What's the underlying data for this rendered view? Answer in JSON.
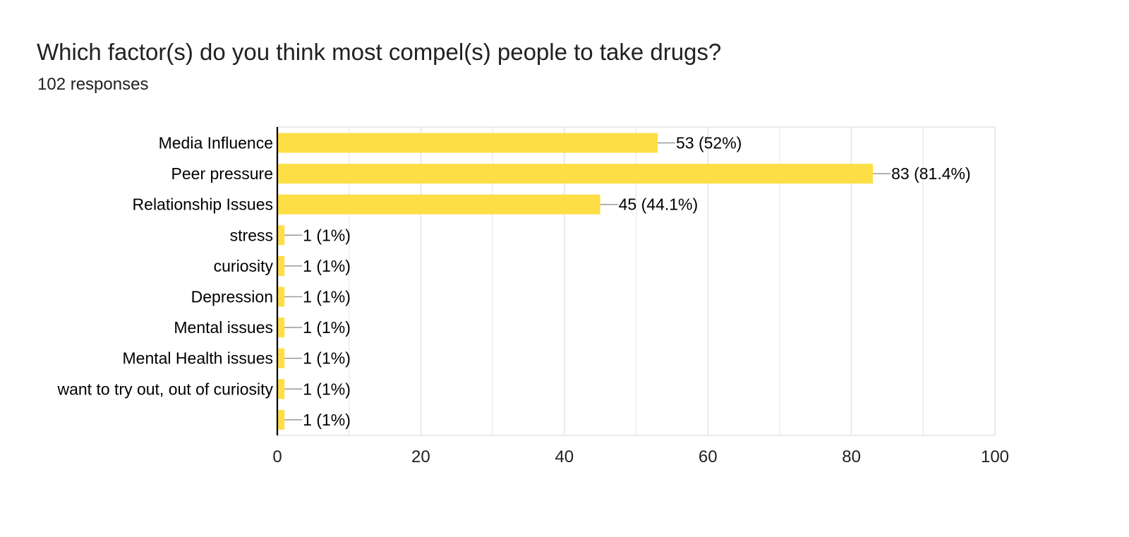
{
  "question": {
    "title": "Which factor(s) do you think most compel(s) people to take drugs?",
    "responses_label": "102 responses"
  },
  "colors": {
    "bar": "#fdde45",
    "grid": "#e8e8ee",
    "axis": "#000000",
    "leader": "#999999",
    "text": "#202124"
  },
  "chart_data": {
    "type": "bar",
    "orientation": "horizontal",
    "title": "Which factor(s) do you think most compel(s) people to take drugs?",
    "xlabel": "",
    "ylabel": "",
    "xlim": [
      0,
      100
    ],
    "x_ticks": [
      0,
      20,
      40,
      60,
      80,
      100
    ],
    "grid": true,
    "categories": [
      "Media Influence",
      "Peer pressure",
      "Relationship Issues",
      "stress",
      "curiosity",
      "Depression",
      "Mental issues",
      "Mental Health issues",
      "want to try out, out of curiosity",
      ""
    ],
    "values": [
      53,
      83,
      45,
      1,
      1,
      1,
      1,
      1,
      1,
      1
    ],
    "data_labels": [
      "53 (52%)",
      "83 (81.4%)",
      "45 (44.1%)",
      "1 (1%)",
      "1 (1%)",
      "1 (1%)",
      "1 (1%)",
      "1 (1%)",
      "1 (1%)",
      "1 (1%)"
    ]
  }
}
